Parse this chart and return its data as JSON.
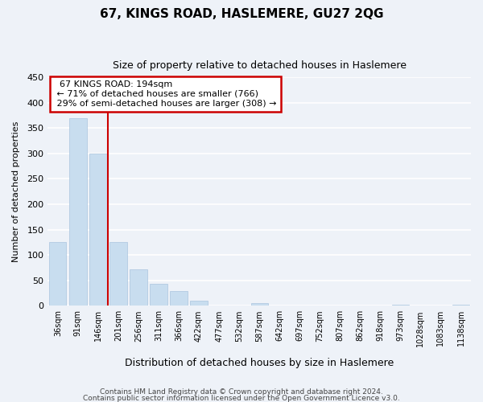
{
  "title": "67, KINGS ROAD, HASLEMERE, GU27 2QG",
  "subtitle": "Size of property relative to detached houses in Haslemere",
  "xlabel": "Distribution of detached houses by size in Haslemere",
  "ylabel": "Number of detached properties",
  "bar_color": "#c8ddef",
  "bar_edge_color": "#aac4de",
  "categories": [
    "36sqm",
    "91sqm",
    "146sqm",
    "201sqm",
    "256sqm",
    "311sqm",
    "366sqm",
    "422sqm",
    "477sqm",
    "532sqm",
    "587sqm",
    "642sqm",
    "697sqm",
    "752sqm",
    "807sqm",
    "862sqm",
    "918sqm",
    "973sqm",
    "1028sqm",
    "1083sqm",
    "1138sqm"
  ],
  "values": [
    125,
    370,
    300,
    125,
    72,
    44,
    29,
    10,
    0,
    0,
    5,
    0,
    0,
    0,
    0,
    0,
    0,
    2,
    0,
    0,
    2
  ],
  "ylim": [
    0,
    450
  ],
  "yticks": [
    0,
    50,
    100,
    150,
    200,
    250,
    300,
    350,
    400,
    450
  ],
  "vline_color": "#cc0000",
  "annotation_title": "67 KINGS ROAD: 194sqm",
  "annotation_line1": "← 71% of detached houses are smaller (766)",
  "annotation_line2": "29% of semi-detached houses are larger (308) →",
  "annotation_box_color": "#ffffff",
  "annotation_box_edge": "#cc0000",
  "footer_line1": "Contains HM Land Registry data © Crown copyright and database right 2024.",
  "footer_line2": "Contains public sector information licensed under the Open Government Licence v3.0.",
  "background_color": "#eef2f8",
  "grid_color": "#ffffff"
}
